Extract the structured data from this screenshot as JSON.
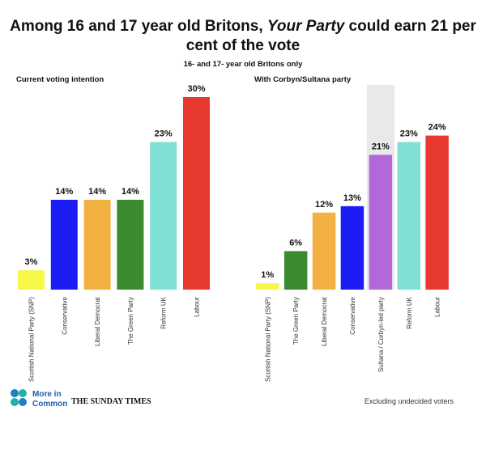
{
  "title": [
    "Among 16 and 17 year old Britons, ",
    "Your Party",
    " could earn 21 per",
    "cent of the vote"
  ],
  "subtitle": "16- and 17- year old Britons only",
  "logo_text": [
    "More in",
    "Common"
  ],
  "publisher": "THE SUNDAY TIMES",
  "note": "Excluding undecided voters",
  "chart_data": [
    {
      "type": "bar",
      "title": "Current voting intention",
      "categories": [
        "Scottish National Party (SNP)",
        "Conservative",
        "Liberal Democrat",
        "The Green Party",
        "Reform UK",
        "Labour"
      ],
      "values": [
        3,
        14,
        14,
        14,
        23,
        30
      ],
      "value_labels": [
        "3%",
        "14%",
        "14%",
        "14%",
        "23%",
        "30%"
      ],
      "colors": [
        "#f7f74a",
        "#1c1cf5",
        "#f3b043",
        "#3b8a2f",
        "#7fe0d3",
        "#e8392f"
      ]
    },
    {
      "type": "bar",
      "title": "With Corbyn/Sultana party",
      "categories": [
        "Scottish National Party (SNP)",
        "The Green Party",
        "Liberal Democrat",
        "Conservative",
        "Sultana / Corbyn-led party",
        "Reform UK",
        "Labour"
      ],
      "values": [
        1,
        6,
        12,
        13,
        21,
        23,
        24
      ],
      "value_labels": [
        "1%",
        "6%",
        "12%",
        "13%",
        "21%",
        "23%",
        "24%"
      ],
      "colors": [
        "#f7f74a",
        "#3b8a2f",
        "#f3b043",
        "#1c1cf5",
        "#b467d8",
        "#7fe0d3",
        "#e8392f"
      ]
    }
  ]
}
